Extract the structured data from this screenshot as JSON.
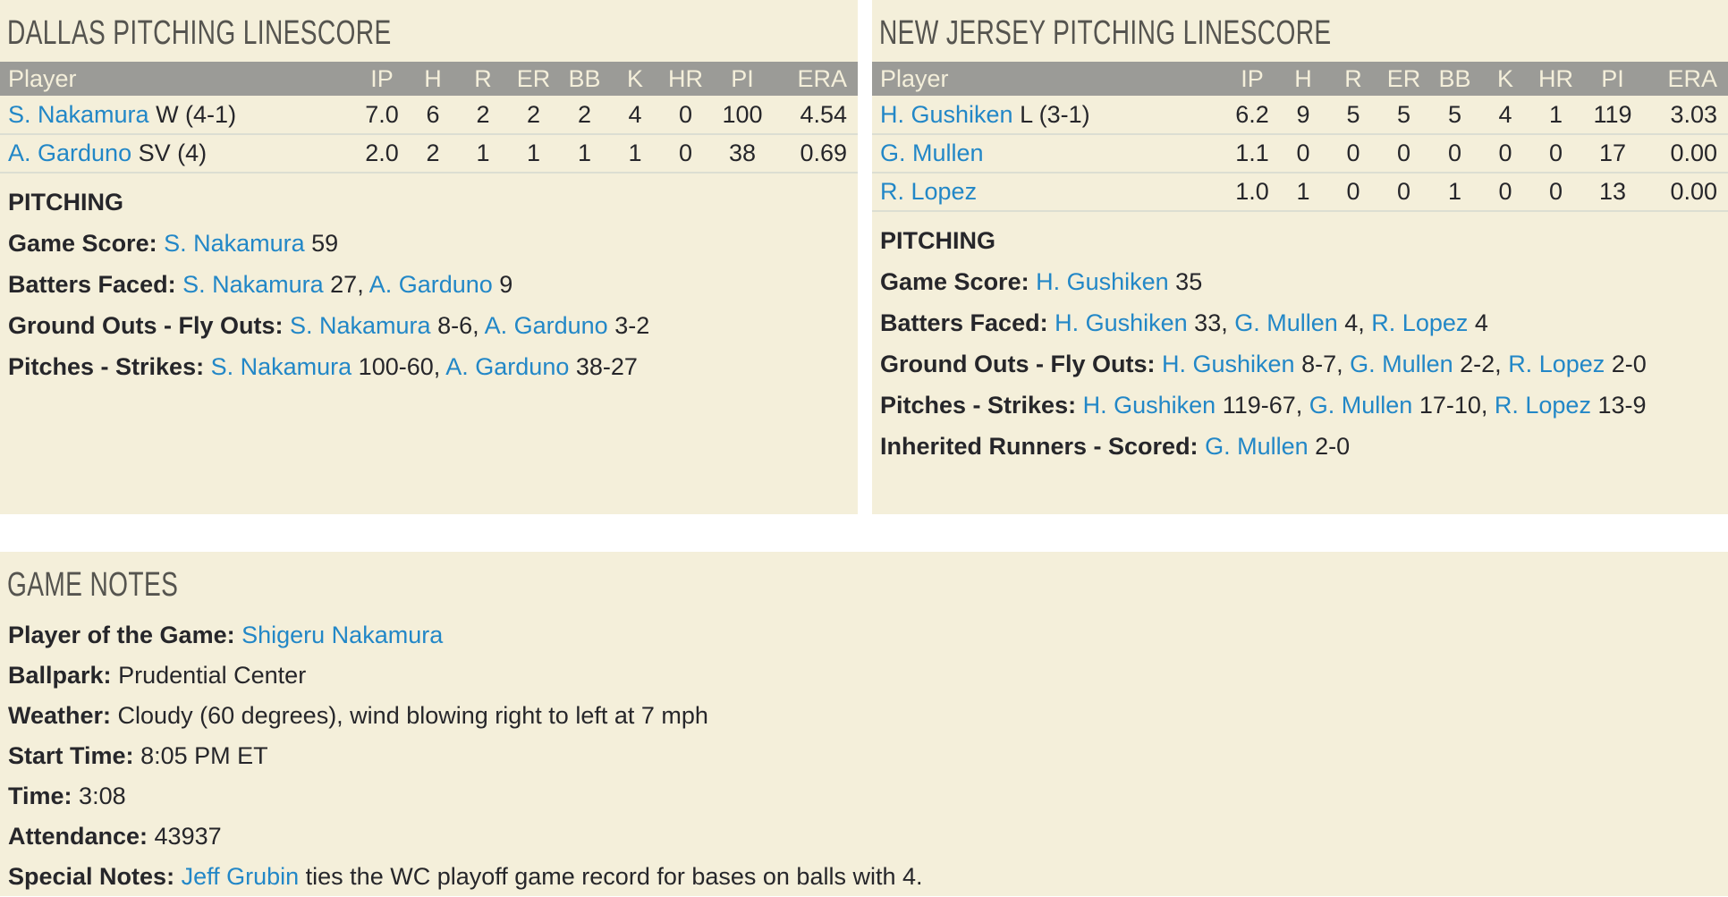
{
  "colors": {
    "panel_bg": "#f4efda",
    "header_bg": "#9b9b97",
    "header_text": "#f4efda",
    "link": "#2287c7",
    "text": "#26262a",
    "title": "#55544f",
    "separator": "#dcded2"
  },
  "dallas": {
    "title": "DALLAS PITCHING LINESCORE",
    "columns": [
      "Player",
      "IP",
      "H",
      "R",
      "ER",
      "BB",
      "K",
      "HR",
      "PI",
      "ERA"
    ],
    "rows": [
      {
        "name": "S. Nakamura",
        "decoration": "W (4-1)",
        "stats": [
          "7.0",
          "6",
          "2",
          "2",
          "2",
          "4",
          "0",
          "100",
          "4.54"
        ]
      },
      {
        "name": "A. Garduno",
        "decoration": "SV (4)",
        "stats": [
          "2.0",
          "2",
          "1",
          "1",
          "1",
          "1",
          "0",
          "38",
          "0.69"
        ]
      }
    ],
    "section_title": "PITCHING",
    "notes": [
      {
        "label": "Game Score:",
        "parts": [
          {
            "t": "link",
            "v": "S. Nakamura"
          },
          {
            "t": "text",
            "v": " 59"
          }
        ]
      },
      {
        "label": "Batters Faced:",
        "parts": [
          {
            "t": "link",
            "v": "S. Nakamura"
          },
          {
            "t": "text",
            "v": " 27, "
          },
          {
            "t": "link",
            "v": "A. Garduno"
          },
          {
            "t": "text",
            "v": " 9"
          }
        ]
      },
      {
        "label": "Ground Outs - Fly Outs:",
        "parts": [
          {
            "t": "link",
            "v": "S. Nakamura"
          },
          {
            "t": "text",
            "v": " 8-6, "
          },
          {
            "t": "link",
            "v": "A. Garduno"
          },
          {
            "t": "text",
            "v": " 3-2"
          }
        ]
      },
      {
        "label": "Pitches - Strikes:",
        "parts": [
          {
            "t": "link",
            "v": "S. Nakamura"
          },
          {
            "t": "text",
            "v": " 100-60, "
          },
          {
            "t": "link",
            "v": "A. Garduno"
          },
          {
            "t": "text",
            "v": " 38-27"
          }
        ]
      }
    ]
  },
  "new_jersey": {
    "title": "NEW JERSEY PITCHING LINESCORE",
    "columns": [
      "Player",
      "IP",
      "H",
      "R",
      "ER",
      "BB",
      "K",
      "HR",
      "PI",
      "ERA"
    ],
    "rows": [
      {
        "name": "H. Gushiken",
        "decoration": "L (3-1)",
        "stats": [
          "6.2",
          "9",
          "5",
          "5",
          "5",
          "4",
          "1",
          "119",
          "3.03"
        ]
      },
      {
        "name": "G. Mullen",
        "decoration": "",
        "stats": [
          "1.1",
          "0",
          "0",
          "0",
          "0",
          "0",
          "0",
          "17",
          "0.00"
        ]
      },
      {
        "name": "R. Lopez",
        "decoration": "",
        "stats": [
          "1.0",
          "1",
          "0",
          "0",
          "1",
          "0",
          "0",
          "13",
          "0.00"
        ]
      }
    ],
    "section_title": "PITCHING",
    "notes": [
      {
        "label": "Game Score:",
        "parts": [
          {
            "t": "link",
            "v": "H. Gushiken"
          },
          {
            "t": "text",
            "v": " 35"
          }
        ]
      },
      {
        "label": "Batters Faced:",
        "parts": [
          {
            "t": "link",
            "v": "H. Gushiken"
          },
          {
            "t": "text",
            "v": " 33, "
          },
          {
            "t": "link",
            "v": "G. Mullen"
          },
          {
            "t": "text",
            "v": " 4, "
          },
          {
            "t": "link",
            "v": "R. Lopez"
          },
          {
            "t": "text",
            "v": " 4"
          }
        ]
      },
      {
        "label": "Ground Outs - Fly Outs:",
        "parts": [
          {
            "t": "link",
            "v": "H. Gushiken"
          },
          {
            "t": "text",
            "v": " 8-7, "
          },
          {
            "t": "link",
            "v": "G. Mullen"
          },
          {
            "t": "text",
            "v": " 2-2, "
          },
          {
            "t": "link",
            "v": "R. Lopez"
          },
          {
            "t": "text",
            "v": " 2-0"
          }
        ]
      },
      {
        "label": "Pitches - Strikes:",
        "parts": [
          {
            "t": "link",
            "v": "H. Gushiken"
          },
          {
            "t": "text",
            "v": " 119-67, "
          },
          {
            "t": "link",
            "v": "G. Mullen"
          },
          {
            "t": "text",
            "v": " 17-10, "
          },
          {
            "t": "link",
            "v": "R. Lopez"
          },
          {
            "t": "text",
            "v": " 13-9"
          }
        ]
      },
      {
        "label": "Inherited Runners - Scored:",
        "parts": [
          {
            "t": "link",
            "v": "G. Mullen"
          },
          {
            "t": "text",
            "v": " 2-0"
          }
        ]
      }
    ]
  },
  "game_notes": {
    "title": "GAME NOTES",
    "lines": [
      {
        "label": "Player of the Game:",
        "parts": [
          {
            "t": "link",
            "v": "Shigeru Nakamura"
          }
        ]
      },
      {
        "label": "Ballpark:",
        "parts": [
          {
            "t": "text",
            "v": "Prudential Center"
          }
        ]
      },
      {
        "label": "Weather:",
        "parts": [
          {
            "t": "text",
            "v": "Cloudy (60 degrees), wind blowing right to left at 7 mph"
          }
        ]
      },
      {
        "label": "Start Time:",
        "parts": [
          {
            "t": "text",
            "v": "8:05 PM ET"
          }
        ]
      },
      {
        "label": "Time:",
        "parts": [
          {
            "t": "text",
            "v": "3:08"
          }
        ]
      },
      {
        "label": "Attendance:",
        "parts": [
          {
            "t": "text",
            "v": "43937"
          }
        ]
      },
      {
        "label": "Special Notes:",
        "parts": [
          {
            "t": "link",
            "v": "Jeff Grubin"
          },
          {
            "t": "text",
            "v": " ties the WC playoff game record for bases on balls with 4."
          }
        ]
      }
    ]
  }
}
